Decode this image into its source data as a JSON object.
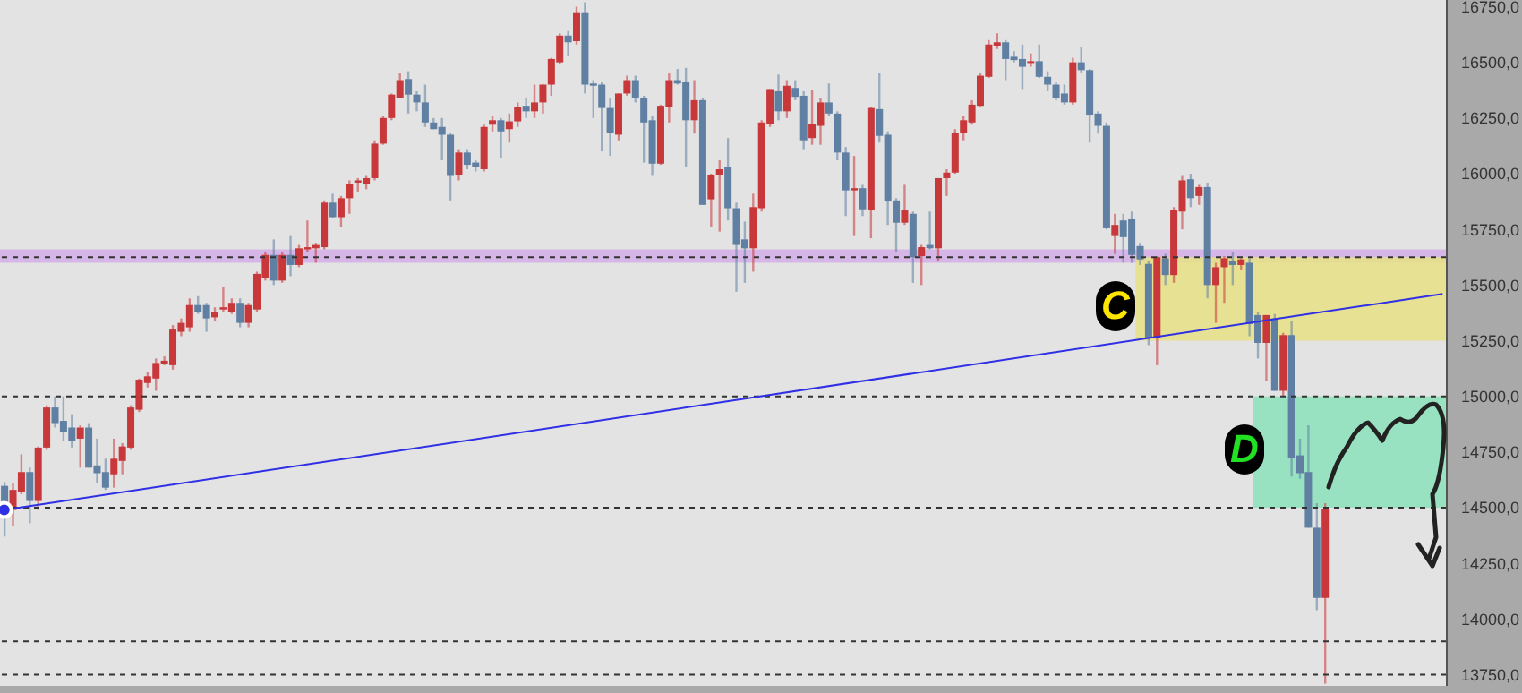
{
  "chart_data": {
    "type": "candlestick",
    "tick_labels": "y",
    "colors": [
      "#5f7fa3",
      "#c8373a",
      "#c8373a",
      "#5f7fa3",
      "#c8373a",
      "#c8373a",
      "#5f7fa3",
      "#5f7fa3",
      "#5f7fa3",
      "#c8373a",
      "#5f7fa3",
      "#5f7fa3",
      "#5f7fa3",
      "#c8373a",
      "#c8373a",
      "#c8373a",
      "#c8373a",
      "#c8373a",
      "#c8373a",
      "#c8373a",
      "#c8373a",
      "#c8373a",
      "#c8373a",
      "#5f7fa3",
      "#5f7fa3",
      "#c8373a",
      "#c8373a",
      "#c8373a",
      "#5f7fa3",
      "#c8373a",
      "#c8373a",
      "#c8373a",
      "#5f7fa3",
      "#c8373a",
      "#5f7fa3",
      "#c8373a",
      "#c8373a",
      "#c8373a",
      "#c8373a",
      "#5f7fa3",
      "#c8373a",
      "#c8373a",
      "#c8373a",
      "#c8373a",
      "#c8373a",
      "#c8373a",
      "#c8373a",
      "#c8373a",
      "#5f7fa3",
      "#5f7fa3",
      "#5f7fa3",
      "#5f7fa3",
      "#5f7fa3",
      "#5f7fa3",
      "#c8373a",
      "#5f7fa3",
      "#5f7fa3",
      "#c8373a",
      "#c8373a",
      "#5f7fa3",
      "#c8373a",
      "#c8373a",
      "#5f7fa3",
      "#c8373a",
      "#c8373a",
      "#c8373a",
      "#c8373a",
      "#5f7fa3",
      "#c8373a",
      "#5f7fa3",
      "#5f7fa3",
      "#5f7fa3",
      "#5f7fa3",
      "#c8373a",
      "#c8373a",
      "#5f7fa3",
      "#5f7fa3",
      "#5f7fa3",
      "#c8373a",
      "#c8373a",
      "#5f7fa3",
      "#5f7fa3",
      "#c8373a",
      "#5f7fa3",
      "#c8373a",
      "#c8373a",
      "#5f7fa3",
      "#5f7fa3",
      "#5f7fa3",
      "#c8373a",
      "#c8373a",
      "#c8373a",
      "#5f7fa3",
      "#c8373a",
      "#5f7fa3",
      "#5f7fa3",
      "#c8373a",
      "#c8373a",
      "#5f7fa3",
      "#5f7fa3",
      "#5f7fa3",
      "#c8373a",
      "#5f7fa3",
      "#c8373a",
      "#5f7fa3",
      "#5f7fa3",
      "#5f7fa3",
      "#c8373a",
      "#5f7fa3",
      "#c8373a",
      "#5f7fa3",
      "#c8373a",
      "#c8373a",
      "#c8373a",
      "#c8373a",
      "#c8373a",
      "#c8373a",
      "#c8373a",
      "#c8373a",
      "#5f7fa3",
      "#5f7fa3",
      "#5f7fa3",
      "#c8373a",
      "#5f7fa3",
      "#5f7fa3",
      "#5f7fa3",
      "#5f7fa3",
      "#c8373a",
      "#5f7fa3",
      "#5f7fa3",
      "#5f7fa3",
      "#5f7fa3",
      "#c8373a",
      "#5f7fa3",
      "#5f7fa3",
      "#5f7fa3",
      "#5f7fa3",
      "#c8373a",
      "#5f7fa3",
      "#c8373a",
      "#c8373a",
      "#5f7fa3",
      "#c8373a",
      "#5f7fa3",
      "#c8373a",
      "#c8373a",
      "#5f7fa3",
      "#c8373a",
      "#5f7fa3",
      "#5f7fa3",
      "#c8373a",
      "#5f7fa3",
      "#c8373a",
      "#5f7fa3",
      "#5f7fa3",
      "#5f7fa3",
      "#5f7fa3",
      "#c8373a",
      null,
      null,
      null,
      null,
      null,
      null,
      null,
      null,
      null,
      null,
      null,
      null,
      null,
      null
    ],
    "ylim": [
      13700,
      16780
    ],
    "yticks": [
      {
        "value": 13750,
        "label": "13750,0"
      },
      {
        "value": 14000,
        "label": "14000,0"
      },
      {
        "value": 14250,
        "label": "14250,0"
      },
      {
        "value": 14500,
        "label": "14500,0"
      },
      {
        "value": 14750,
        "label": "14750,0"
      },
      {
        "value": 15000,
        "label": "15000,0"
      },
      {
        "value": 15250,
        "label": "15250,0"
      },
      {
        "value": 15500,
        "label": "15500,0"
      },
      {
        "value": 15750,
        "label": "15750,0"
      },
      {
        "value": 16000,
        "label": "16000,0"
      },
      {
        "value": 16250,
        "label": "16250,0"
      },
      {
        "value": 16500,
        "label": "16500,0"
      },
      {
        "value": 16750,
        "label": "16750,0"
      }
    ],
    "annotations": [
      "C",
      "D"
    ],
    "ref_lines": [
      {
        "axis": "y",
        "value": 15625,
        "line_style": "dashed",
        "color": "#333333"
      },
      {
        "axis": "y",
        "value": 15000,
        "line_style": "dashed",
        "color": "#333333"
      },
      {
        "axis": "y",
        "value": 14500,
        "line_style": "dashed",
        "color": "#333333"
      },
      {
        "axis": "y",
        "value": 13900,
        "line_style": "dashed",
        "color": "#333333"
      },
      {
        "axis": "y",
        "value": 13750,
        "line_style": "dashed",
        "color": "#333333"
      }
    ],
    "bands": [
      {
        "axis": "y",
        "from": 15600,
        "to": 15660,
        "color": "#d4b0e6"
      },
      {
        "axis": "y",
        "from": 15250,
        "to": 15625,
        "color": "#e6e08a"
      },
      {
        "axis": "y",
        "from": 14500,
        "to": 15000,
        "color": "#8fe0bc"
      }
    ],
    "categories": [
      null,
      null,
      null,
      null,
      null,
      null,
      null,
      null,
      null,
      null,
      null,
      null,
      null,
      null,
      null,
      null,
      null,
      null,
      null,
      null,
      null,
      null,
      null,
      null,
      null,
      null,
      null,
      null,
      null,
      null,
      null,
      null,
      null,
      null,
      null,
      null,
      null,
      null,
      null,
      null,
      null,
      null,
      null,
      null,
      null,
      null,
      null,
      null,
      null,
      null,
      null,
      null,
      null,
      null,
      null,
      null,
      null,
      null,
      null,
      null,
      null,
      null,
      null,
      null,
      null,
      null,
      null,
      null,
      null,
      null,
      null,
      null,
      null,
      null,
      null,
      null,
      null,
      null,
      null,
      null,
      null,
      null,
      null,
      null,
      null,
      null,
      null,
      null,
      null,
      null,
      null,
      null,
      null,
      null,
      null,
      null,
      null,
      null,
      null,
      null,
      null,
      null,
      null,
      null,
      null,
      null,
      null,
      null,
      null,
      null,
      null,
      null,
      null,
      null,
      null,
      null,
      null,
      null,
      null,
      null,
      null,
      null,
      null,
      null,
      null,
      null,
      null,
      null,
      null,
      null,
      null,
      null,
      null,
      null,
      null,
      null,
      null,
      null,
      null,
      null,
      null,
      null,
      null,
      null,
      null,
      null,
      null,
      null,
      null,
      null,
      null,
      null,
      null,
      null,
      null,
      null,
      null,
      null,
      null,
      null,
      null,
      null,
      null,
      null,
      null,
      null,
      null,
      null,
      null,
      null,
      null,
      null
    ],
    "ohlc": [
      [
        14598,
        14615,
        14370,
        14500
      ],
      [
        14490,
        14610,
        14420,
        14580
      ],
      [
        14570,
        14740,
        14560,
        14660
      ],
      [
        14660,
        14680,
        14430,
        14530
      ],
      [
        14530,
        14775,
        14490,
        14770
      ],
      [
        14770,
        14960,
        14760,
        14950
      ],
      [
        14950,
        15000,
        14860,
        14880
      ],
      [
        14890,
        15000,
        14800,
        14840
      ],
      [
        14860,
        14920,
        14770,
        14800
      ],
      [
        14810,
        14870,
        14680,
        14860
      ],
      [
        14860,
        14880,
        14680,
        14680
      ],
      [
        14690,
        14810,
        14610,
        14655
      ],
      [
        14660,
        14720,
        14580,
        14590
      ],
      [
        14650,
        14810,
        14590,
        14720
      ],
      [
        14710,
        14790,
        14650,
        14775
      ],
      [
        14770,
        14960,
        14760,
        14950
      ],
      [
        14940,
        15080,
        14930,
        15075
      ],
      [
        15060,
        15110,
        15040,
        15090
      ],
      [
        15080,
        15170,
        15025,
        15150
      ],
      [
        15145,
        15180,
        15140,
        15160
      ],
      [
        15140,
        15320,
        15120,
        15300
      ],
      [
        15290,
        15350,
        15270,
        15330
      ],
      [
        15310,
        15440,
        15290,
        15410
      ],
      [
        15410,
        15450,
        15370,
        15380
      ],
      [
        15410,
        15420,
        15290,
        15350
      ],
      [
        15355,
        15400,
        15340,
        15380
      ],
      [
        15390,
        15490,
        15380,
        15400
      ],
      [
        15380,
        15440,
        15370,
        15420
      ],
      [
        15420,
        15440,
        15310,
        15330
      ],
      [
        15330,
        15420,
        15310,
        15410
      ],
      [
        15390,
        15560,
        15380,
        15550
      ],
      [
        15530,
        15650,
        15520,
        15635
      ],
      [
        15635,
        15705,
        15500,
        15520
      ],
      [
        15520,
        15650,
        15510,
        15635
      ],
      [
        15635,
        15720,
        15540,
        15590
      ],
      [
        15590,
        15680,
        15580,
        15665
      ],
      [
        15660,
        15790,
        15650,
        15670
      ],
      [
        15665,
        15690,
        15600,
        15680
      ],
      [
        15670,
        15880,
        15660,
        15870
      ],
      [
        15870,
        15910,
        15800,
        15805
      ],
      [
        15805,
        15900,
        15760,
        15890
      ],
      [
        15890,
        15970,
        15820,
        15955
      ],
      [
        15960,
        15980,
        15920,
        15970
      ],
      [
        15955,
        15990,
        15930,
        15980
      ],
      [
        15980,
        16150,
        15970,
        16135
      ],
      [
        16135,
        16260,
        16130,
        16250
      ],
      [
        16250,
        16360,
        16240,
        16355
      ],
      [
        16340,
        16450,
        16340,
        16420
      ],
      [
        16425,
        16460,
        16270,
        16355
      ],
      [
        16355,
        16370,
        16280,
        16320
      ],
      [
        16320,
        16400,
        16210,
        16230
      ],
      [
        16230,
        16250,
        16200,
        16200
      ],
      [
        16210,
        16250,
        16060,
        16175
      ],
      [
        16175,
        16180,
        15880,
        15990
      ],
      [
        15995,
        16110,
        15970,
        16095
      ],
      [
        16095,
        16110,
        16020,
        16040
      ],
      [
        16050,
        16060,
        16010,
        16030
      ],
      [
        16020,
        16220,
        16010,
        16210
      ],
      [
        16220,
        16260,
        16190,
        16240
      ],
      [
        16240,
        16250,
        16070,
        16190
      ],
      [
        16200,
        16270,
        16140,
        16235
      ],
      [
        16235,
        16320,
        16210,
        16300
      ],
      [
        16305,
        16340,
        16250,
        16280
      ],
      [
        16280,
        16400,
        16250,
        16320
      ],
      [
        16320,
        16400,
        16270,
        16400
      ],
      [
        16400,
        16520,
        16350,
        16515
      ],
      [
        16500,
        16630,
        16490,
        16620
      ],
      [
        16620,
        16640,
        16530,
        16590
      ],
      [
        16595,
        16750,
        16580,
        16725
      ],
      [
        16725,
        16770,
        16360,
        16400
      ],
      [
        16405,
        16420,
        16250,
        16395
      ],
      [
        16400,
        16410,
        16100,
        16295
      ],
      [
        16295,
        16340,
        16080,
        16185
      ],
      [
        16175,
        16360,
        16150,
        16360
      ],
      [
        16360,
        16440,
        16350,
        16420
      ],
      [
        16420,
        16440,
        16320,
        16340
      ],
      [
        16340,
        16350,
        16050,
        16230
      ],
      [
        16240,
        16260,
        15990,
        16045
      ],
      [
        16045,
        16310,
        16040,
        16305
      ],
      [
        16300,
        16450,
        16230,
        16420
      ],
      [
        16420,
        16470,
        16400,
        16405
      ],
      [
        16410,
        16475,
        16030,
        16240
      ],
      [
        16240,
        16420,
        16180,
        16330
      ],
      [
        16330,
        16340,
        15860,
        15860
      ],
      [
        15885,
        16000,
        15760,
        15995
      ],
      [
        15995,
        16060,
        15740,
        16020
      ],
      [
        16030,
        16160,
        15790,
        15845
      ],
      [
        15845,
        15870,
        15470,
        15680
      ],
      [
        15705,
        15785,
        15510,
        15665
      ],
      [
        15665,
        15910,
        15560,
        15850
      ],
      [
        15845,
        16240,
        15830,
        16230
      ],
      [
        16225,
        16380,
        16210,
        16380
      ],
      [
        16370,
        16445,
        16240,
        16280
      ],
      [
        16280,
        16420,
        16250,
        16395
      ],
      [
        16385,
        16420,
        16330,
        16345
      ],
      [
        16350,
        16370,
        16110,
        16150
      ],
      [
        16160,
        16375,
        16130,
        16225
      ],
      [
        16215,
        16340,
        16130,
        16320
      ],
      [
        16320,
        16405,
        16260,
        16270
      ],
      [
        16270,
        16280,
        16060,
        16095
      ],
      [
        16095,
        16120,
        15810,
        15925
      ],
      [
        15925,
        16080,
        15720,
        15935
      ],
      [
        15935,
        15950,
        15810,
        15840
      ],
      [
        15835,
        16300,
        15710,
        16295
      ],
      [
        16290,
        16450,
        16140,
        16170
      ],
      [
        16175,
        16190,
        15770,
        15875
      ],
      [
        15880,
        15890,
        15650,
        15780
      ],
      [
        15780,
        15950,
        15770,
        15835
      ],
      [
        15820,
        15830,
        15510,
        15625
      ],
      [
        15630,
        15680,
        15500,
        15670
      ],
      [
        15680,
        15830,
        15660,
        15665
      ],
      [
        15665,
        15980,
        15610,
        15980
      ],
      [
        15980,
        16020,
        15900,
        16005
      ],
      [
        16005,
        16200,
        16000,
        16185
      ],
      [
        16185,
        16260,
        16150,
        16240
      ],
      [
        16230,
        16330,
        16220,
        16310
      ],
      [
        16305,
        16450,
        16300,
        16440
      ],
      [
        16435,
        16600,
        16430,
        16580
      ],
      [
        16575,
        16630,
        16560,
        16590
      ],
      [
        16590,
        16600,
        16420,
        16515
      ],
      [
        16525,
        16550,
        16500,
        16510
      ],
      [
        16515,
        16580,
        16380,
        16480
      ],
      [
        16500,
        16540,
        16480,
        16505
      ],
      [
        16505,
        16580,
        16430,
        16435
      ],
      [
        16435,
        16460,
        16370,
        16400
      ],
      [
        16400,
        16410,
        16330,
        16340
      ],
      [
        16360,
        16400,
        16310,
        16320
      ],
      [
        16320,
        16520,
        16310,
        16500
      ],
      [
        16500,
        16570,
        16450,
        16465
      ],
      [
        16465,
        16470,
        16140,
        16265
      ],
      [
        16270,
        16280,
        16180,
        16215
      ],
      [
        16215,
        16230,
        15750,
        15755
      ],
      [
        15720,
        15820,
        15640,
        15770
      ],
      [
        15790,
        15820,
        15600,
        15715
      ],
      [
        15795,
        15830,
        15600,
        15635
      ],
      [
        15675,
        15690,
        15590,
        15615
      ],
      [
        15595,
        15610,
        15230,
        15260
      ],
      [
        15260,
        15630,
        15140,
        15625
      ],
      [
        15620,
        15640,
        15500,
        15545
      ],
      [
        15545,
        15850,
        15510,
        15835
      ],
      [
        15830,
        15990,
        15750,
        15970
      ],
      [
        15975,
        16000,
        15850,
        15890
      ],
      [
        15900,
        15950,
        15860,
        15940
      ],
      [
        15940,
        15960,
        15440,
        15500
      ],
      [
        15500,
        15600,
        15330,
        15580
      ],
      [
        15580,
        15630,
        15420,
        15620
      ],
      [
        15610,
        15650,
        15500,
        15590
      ],
      [
        15590,
        15620,
        15570,
        15615
      ],
      [
        15600,
        15620,
        15270,
        15325
      ],
      [
        15365,
        15380,
        15170,
        15240
      ],
      [
        15240,
        15365,
        15070,
        15365
      ],
      [
        15350,
        15370,
        15025,
        15025
      ],
      [
        15025,
        15285,
        15000,
        15275
      ],
      [
        15275,
        15340,
        14640,
        14725
      ],
      [
        14735,
        14810,
        14630,
        14655
      ],
      [
        14660,
        14870,
        14410,
        14410
      ],
      [
        14410,
        14520,
        14040,
        14095
      ],
      [
        14095,
        14520,
        13710,
        14495
      ],
      null,
      null,
      null,
      null,
      null,
      null,
      null,
      null,
      null,
      null,
      null,
      null,
      null,
      null
    ],
    "series": [
      {
        "type": "line",
        "color": "#2f2fe6",
        "values": [
          14490,
          null,
          null,
          null,
          null,
          null,
          null,
          null,
          null,
          null,
          null,
          null,
          null,
          null,
          null,
          null,
          null,
          null,
          null,
          null,
          null,
          null,
          null,
          null,
          null,
          null,
          null,
          null,
          null,
          null,
          null,
          null,
          null,
          null,
          null,
          null,
          null,
          null,
          null,
          null,
          null,
          null,
          null,
          null,
          null,
          null,
          null,
          null,
          null,
          null,
          null,
          null,
          null,
          null,
          null,
          null,
          null,
          null,
          null,
          null,
          null,
          null,
          null,
          null,
          null,
          null,
          null,
          null,
          null,
          null,
          null,
          null,
          null,
          null,
          null,
          null,
          null,
          null,
          null,
          null,
          null,
          null,
          null,
          null,
          null,
          null,
          null,
          null,
          null,
          null,
          null,
          null,
          null,
          null,
          null,
          null,
          null,
          null,
          null,
          null,
          null,
          null,
          null,
          null,
          null,
          null,
          null,
          null,
          null,
          null,
          null,
          null,
          null,
          null,
          null,
          null,
          null,
          null,
          null,
          null,
          null,
          null,
          null,
          null,
          null,
          null,
          null,
          null,
          null,
          null,
          null,
          null,
          null,
          null,
          null,
          null,
          null,
          null,
          null,
          null,
          null,
          null,
          null,
          null,
          null,
          null,
          null,
          null,
          null,
          null,
          null,
          null,
          null,
          null,
          null,
          null,
          null,
          null,
          null,
          null,
          null,
          null,
          null,
          null,
          null,
          null,
          null,
          null,
          null,
          null,
          null,
          15460
        ]
      }
    ]
  }
}
